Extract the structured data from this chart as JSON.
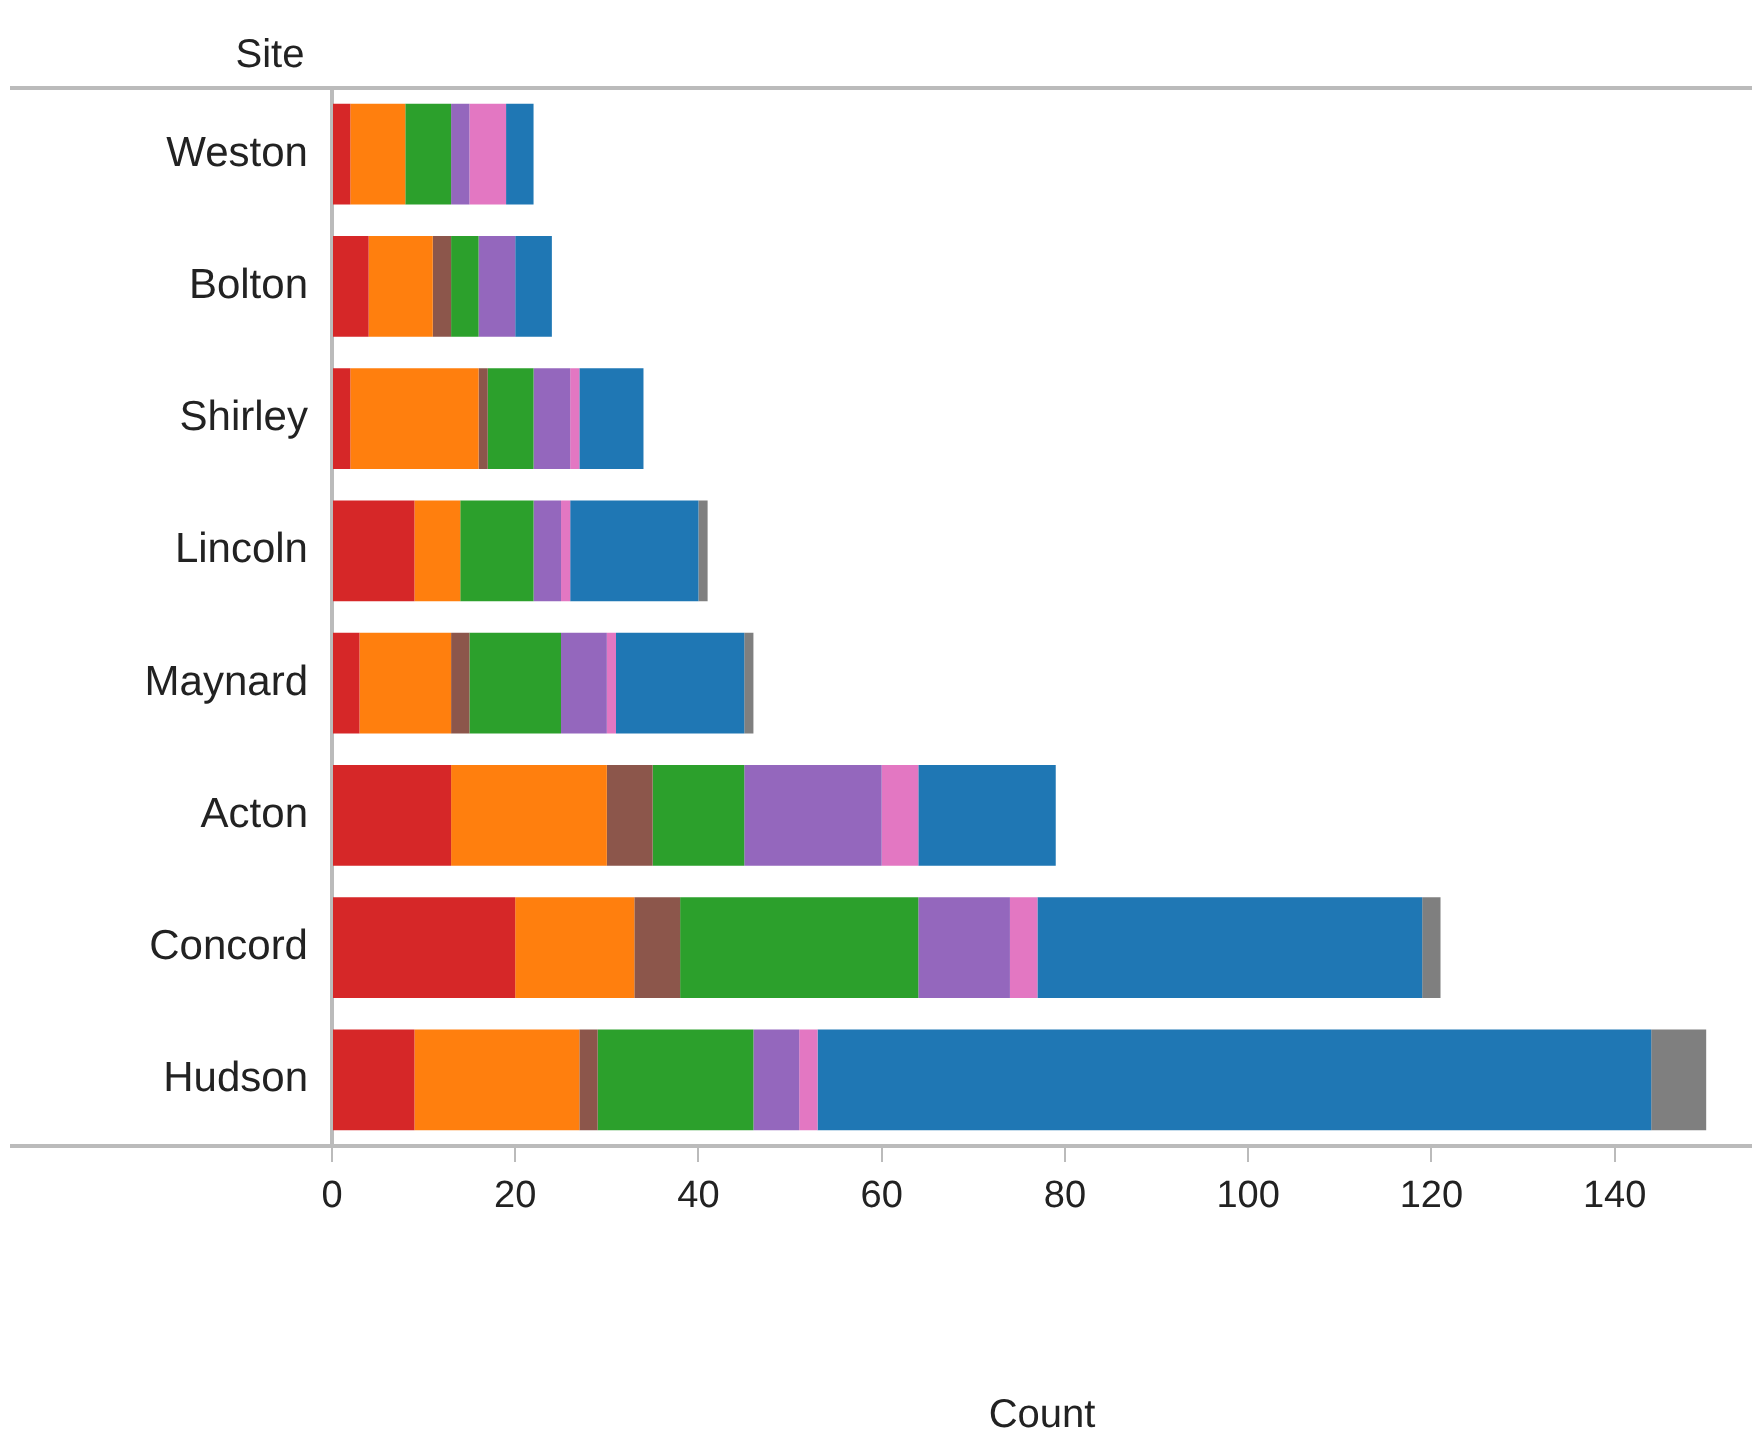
{
  "chart_data": {
    "type": "bar",
    "orientation": "horizontal",
    "stacked": true,
    "xlabel": "Count",
    "ylabel": "Site",
    "categories": [
      "Weston",
      "Bolton",
      "Shirley",
      "Lincoln",
      "Maynard",
      "Acton",
      "Concord",
      "Hudson"
    ],
    "series": [
      {
        "color": "#d62728",
        "values": [
          2,
          4,
          2,
          9,
          3,
          13,
          20,
          9
        ]
      },
      {
        "color": "#ff7f0e",
        "values": [
          6,
          7,
          14,
          5,
          10,
          17,
          13,
          18
        ]
      },
      {
        "color": "#8c564b",
        "values": [
          0,
          2,
          1,
          0,
          2,
          5,
          5,
          2
        ]
      },
      {
        "color": "#2ca02c",
        "values": [
          5,
          3,
          5,
          8,
          10,
          10,
          26,
          17
        ]
      },
      {
        "color": "#9467bd",
        "values": [
          2,
          4,
          4,
          3,
          5,
          15,
          10,
          5
        ]
      },
      {
        "color": "#e377c2",
        "values": [
          4,
          0,
          1,
          1,
          1,
          4,
          3,
          2
        ]
      },
      {
        "color": "#1f77b4",
        "values": [
          3,
          4,
          7,
          14,
          14,
          15,
          42,
          91
        ]
      },
      {
        "color": "#7f7f7f",
        "values": [
          0,
          0,
          0,
          1,
          1,
          0,
          2,
          6
        ]
      }
    ],
    "xlim": [
      0,
      155
    ],
    "xticks": [
      0,
      20,
      40,
      60,
      80,
      100,
      120,
      140
    ],
    "grid": false,
    "legend": false
  }
}
